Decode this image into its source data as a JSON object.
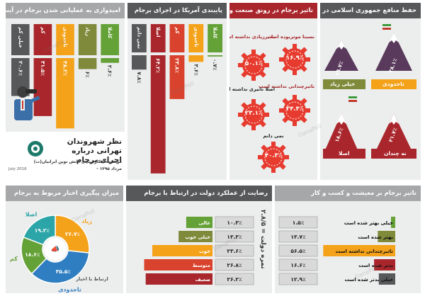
{
  "hope": {
    "title": "امیدواری به عملیاتی شدن برجام در آینده",
    "categories": [
      "خیلی کم",
      "کم",
      "تاحدودی",
      "زیاد",
      "کاملا"
    ],
    "values_label": [
      "۲۰.۶٪",
      "۳۱.۵٪",
      "۳۸.۲٪",
      "۶٪",
      "۲.۶٪"
    ],
    "colors": [
      "#57585a",
      "#a9272c",
      "#f4a21a",
      "#7f8a3a",
      "#64a137"
    ]
  },
  "us_commit": {
    "title": "پایبندی آمریکا در اجرای برجام",
    "categories": [
      "نمی دانم",
      "اصلا",
      "کم",
      "تاحدودی",
      "کاملا"
    ],
    "values_label": [
      "۷.۸٪",
      "۶۴.۲٪",
      "۲۳.۸٪",
      "۳.۶٪",
      "۰.۷٪"
    ],
    "colors": [
      "#57585a",
      "#a9272c",
      "#d9422c",
      "#f4a21a",
      "#64a137"
    ]
  },
  "industry": {
    "title": "تاثیر برجام در رونق صنعت و اقتصاد",
    "gears": [
      {
        "label": "نسبتا موثربوده است",
        "value": "۱۶.۹٪"
      },
      {
        "label": "تاثیرزیادی نداشته است",
        "value": "۵۰.۱٪"
      },
      {
        "label": "تاثیرچندانی نداشته است",
        "value": "۳۴.۴٪"
      },
      {
        "label": "اصلا تاثیری نداشته است",
        "value": "۲۳.۱٪"
      },
      {
        "label": "نمی دانم",
        "value": "۴۰.۳٪"
      }
    ]
  },
  "interests": {
    "title": "حفظ منافع جمهوری اسلامی در برجام",
    "items": [
      {
        "label": "تاحدودی",
        "value": "۳۸.۱٪"
      },
      {
        "label": "خیلی زیاد",
        "value": "۱۹.۷٪"
      },
      {
        "label": "نه چندان",
        "value": "۲۱.۷٪"
      },
      {
        "label": "اصلا",
        "value": "۱۸.۶٪"
      }
    ]
  },
  "study": {
    "title": "نظر شهروندان تهرانی درباره اجرای برجام",
    "org": "موسسه افکارسنجی دانش نوین ایرانیان(ت)",
    "date": "مرداد ۱۳۹۵ -",
    "date_en": "July 2016"
  },
  "news": {
    "title": "میزان پیگیری اخبار مربوط به برجام",
    "categories": [
      "زیاد",
      "تاحدودی",
      "کم",
      "اصلا"
    ],
    "values_label": [
      "۲۶.۷٪",
      "۳۵.۵٪",
      "۱۸.۶٪",
      "۱۹.۲٪"
    ],
    "colors": [
      "#f4a21a",
      "#2f7ec1",
      "#64a137",
      "#2ba5a7"
    ],
    "center_label": "ارتباط با اخبار"
  },
  "satisfaction": {
    "title": "رضایت از عملکرد دولت در ارتباط با برجام",
    "categories": [
      "عالی",
      "خیلی خوب",
      "خوب",
      "متوسط",
      "ضعیف"
    ],
    "values_label": [
      "۱۰.۳٪",
      "۱۳.۳٪",
      "۲۳.۶٪",
      "۲۶.۸٪",
      "۲۶.۲٪"
    ],
    "colors": [
      "#64a137",
      "#7f8a3a",
      "#f4a21a",
      "#d9422c",
      "#a9272c"
    ],
    "avg": "نمره دولت = ۲.۸/۵"
  },
  "livelihood": {
    "title": "تاثیر برجام بر معیشت و کسب و کار",
    "categories": [
      "خیلی بهتر شده است",
      "بهتر شده است",
      "تاثیرچندانی نداشته است",
      "بدتر شده است",
      "خیلی بدتر شده است"
    ],
    "values_label": [
      "۱.۵٪",
      "۱۳.۷٪",
      "۵۶.۵٪",
      "۱۶.۶٪",
      "۱۲.۹٪"
    ],
    "colors": [
      "#64a137",
      "#7f8a3a",
      "#f4a21a",
      "#a9272c",
      "#57585a"
    ]
  },
  "watermark": "DanaPoll",
  "chart_data": [
    {
      "type": "bar",
      "title": "امیدواری به عملیاتی شدن برجام در آینده",
      "categories": [
        "خیلی کم",
        "کم",
        "تاحدودی",
        "زیاد",
        "کاملا"
      ],
      "values": [
        20.6,
        31.5,
        38.2,
        6,
        2.6
      ]
    },
    {
      "type": "bar",
      "title": "پایبندی آمریکا در اجرای برجام",
      "categories": [
        "نمی دانم",
        "اصلا",
        "کم",
        "تاحدودی",
        "کاملا"
      ],
      "values": [
        7.8,
        64.2,
        23.8,
        3.6,
        0.7
      ]
    },
    {
      "type": "bar",
      "title": "تاثیر برجام در رونق صنعت و اقتصاد",
      "categories": [
        "نسبتا موثربوده است",
        "تاثیرزیادی نداشته است",
        "تاثیرچندانی نداشته است",
        "اصلا تاثیری نداشته است",
        "نمی دانم"
      ],
      "values": [
        16.9,
        50.1,
        34.4,
        23.1,
        40.3
      ]
    },
    {
      "type": "bar",
      "title": "حفظ منافع جمهوری اسلامی در برجام",
      "categories": [
        "تاحدودی",
        "خیلی زیاد",
        "نه چندان",
        "اصلا"
      ],
      "values": [
        38.1,
        19.7,
        21.7,
        18.6
      ]
    },
    {
      "type": "pie",
      "title": "میزان پیگیری اخبار مربوط به برجام",
      "categories": [
        "زیاد",
        "تاحدودی",
        "کم",
        "اصلا"
      ],
      "values": [
        26.7,
        35.5,
        18.6,
        19.2
      ]
    },
    {
      "type": "bar",
      "title": "رضایت از عملکرد دولت در ارتباط با برجام",
      "categories": [
        "عالی",
        "خیلی خوب",
        "خوب",
        "متوسط",
        "ضعیف"
      ],
      "values": [
        10.3,
        13.3,
        23.6,
        26.8,
        26.2
      ]
    },
    {
      "type": "bar",
      "title": "تاثیر برجام بر معیشت و کسب و کار",
      "categories": [
        "خیلی بهتر شده است",
        "بهتر شده است",
        "تاثیرچندانی نداشته است",
        "بدتر شده است",
        "خیلی بدتر شده است"
      ],
      "values": [
        1.5,
        13.7,
        56.5,
        16.6,
        12.9
      ]
    }
  ]
}
